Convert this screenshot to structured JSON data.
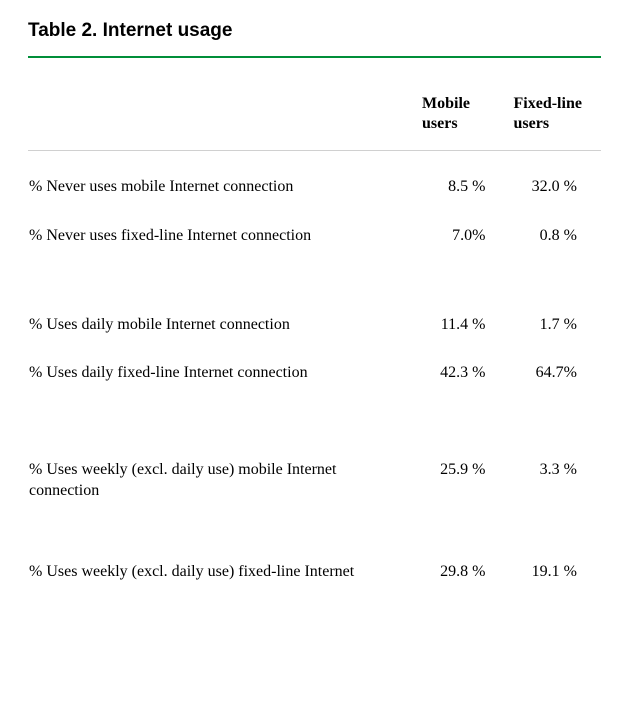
{
  "title": "Table 2. Internet usage",
  "rule_color": "#008e39",
  "columns": [
    "Mobile users",
    "Fixed-line users"
  ],
  "rows": [
    {
      "label": "% Never uses mobile Internet connection",
      "mobile": "8.5 %",
      "fixed": "32.0 %"
    },
    {
      "label": "% Never uses fixed-line Internet connection",
      "mobile": "7.0%",
      "fixed": "0.8 %"
    },
    {
      "label": "% Uses daily mobile Internet connection",
      "mobile": "11.4 %",
      "fixed": "1.7 %"
    },
    {
      "label": "% Uses daily fixed-line Internet connection",
      "mobile": "42.3 %",
      "fixed": "64.7%"
    },
    {
      "label": "% Uses weekly (excl. daily use) mobile Internet connection",
      "mobile": "25.9 %",
      "fixed": "3.3 %"
    },
    {
      "label": "% Uses weekly (excl. daily use) fixed-line Internet",
      "mobile": "29.8 %",
      "fixed": "19.1 %"
    }
  ],
  "fonts": {
    "title_family": "Arial",
    "title_size_pt": 14,
    "body_family": "Times New Roman",
    "body_size_pt": 12
  }
}
